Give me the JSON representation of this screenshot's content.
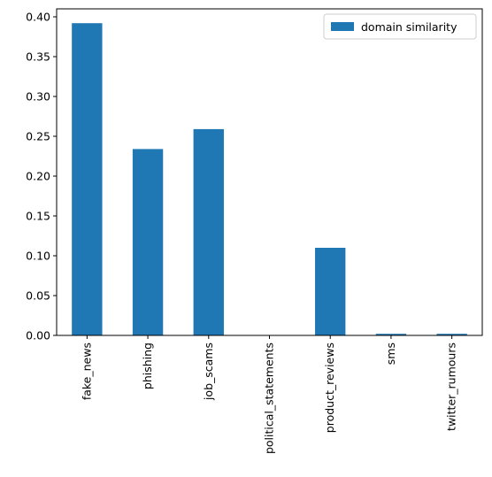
{
  "chart_data": {
    "type": "bar",
    "categories": [
      "fake_news",
      "phishing",
      "job_scams",
      "political_statements",
      "product_reviews",
      "sms",
      "twitter_rumours"
    ],
    "series": [
      {
        "name": "domain similarity",
        "values": [
          0.392,
          0.234,
          0.259,
          0.0,
          0.11,
          0.002,
          0.002
        ],
        "color": "#1f77b4"
      }
    ],
    "ylim": [
      0,
      0.41
    ],
    "yticks": [
      0.0,
      0.05,
      0.1,
      0.15,
      0.2,
      0.25,
      0.3,
      0.35,
      0.4
    ],
    "ytick_labels": [
      "0.00",
      "0.05",
      "0.10",
      "0.15",
      "0.20",
      "0.25",
      "0.30",
      "0.35",
      "0.40"
    ],
    "grid": false,
    "legend_position": "top-right"
  }
}
